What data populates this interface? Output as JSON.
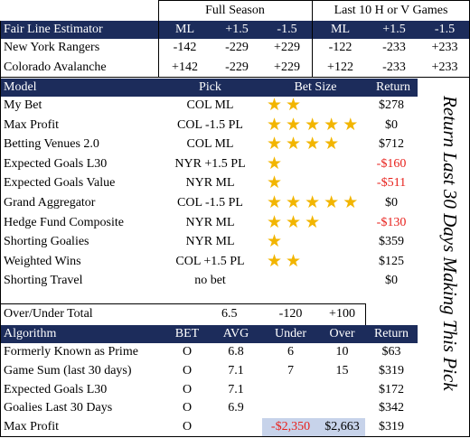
{
  "top_header": {
    "full_season": "Full Season",
    "last10": "Last 10 H or V Games"
  },
  "fair_line": {
    "title": "Fair Line Estimator",
    "cols": [
      "ML",
      "+1.5",
      "-1.5",
      "ML",
      "+1.5",
      "-1.5"
    ],
    "rows": [
      {
        "team": "New York Rangers",
        "vals": [
          "-142",
          "-229",
          "+229",
          "-122",
          "-233",
          "+233"
        ]
      },
      {
        "team": "Colorado Avalanche",
        "vals": [
          "+142",
          "-229",
          "+229",
          "+122",
          "-233",
          "+233"
        ]
      }
    ]
  },
  "model_table": {
    "headers": {
      "model": "Model",
      "pick": "Pick",
      "bet_size": "Bet Size",
      "return": "Return"
    },
    "rows": [
      {
        "model": "My Bet",
        "pick": "COL ML",
        "stars": 2,
        "return": "$278",
        "negative": false
      },
      {
        "model": "Max Profit",
        "pick": "COL -1.5 PL",
        "stars": 5,
        "return": "$0",
        "negative": false
      },
      {
        "model": "Betting Venues 2.0",
        "pick": "COL ML",
        "stars": 4,
        "return": "$712",
        "negative": false
      },
      {
        "model": "Expected Goals L30",
        "pick": "NYR +1.5 PL",
        "stars": 1,
        "return": "-$160",
        "negative": true
      },
      {
        "model": "Expected Goals Value",
        "pick": "NYR ML",
        "stars": 1,
        "return": "-$511",
        "negative": true
      },
      {
        "model": "Grand Aggregator",
        "pick": "COL -1.5 PL",
        "stars": 5,
        "return": "$0",
        "negative": false
      },
      {
        "model": "Hedge Fund Composite",
        "pick": "NYR ML",
        "stars": 3,
        "return": "-$130",
        "negative": true
      },
      {
        "model": "Shorting Goalies",
        "pick": "NYR ML",
        "stars": 1,
        "return": "$359",
        "negative": false
      },
      {
        "model": "Weighted Wins",
        "pick": "COL +1.5 PL",
        "stars": 2,
        "return": "$125",
        "negative": false
      },
      {
        "model": "Shorting Travel",
        "pick": "no bet",
        "stars": 0,
        "return": "$0",
        "negative": false
      }
    ]
  },
  "vertical_label": "Return Last 30 Days Making This Pick",
  "over_under": {
    "label": "Over/Under Total",
    "total": "6.5",
    "under_odds": "-120",
    "over_odds": "+100"
  },
  "algorithm_table": {
    "headers": {
      "algorithm": "Algorithm",
      "bet": "BET",
      "avg": "AVG",
      "under": "Under",
      "over": "Over",
      "return": "Return"
    },
    "rows": [
      {
        "name": "Formerly Known as Prime",
        "bet": "O",
        "avg": "6.8",
        "under": "6",
        "over": "10",
        "return": "$63"
      },
      {
        "name": "Game Sum (last 30 days)",
        "bet": "O",
        "avg": "7.1",
        "under": "7",
        "over": "15",
        "return": "$319"
      },
      {
        "name": "Expected Goals L30",
        "bet": "O",
        "avg": "7.1",
        "under": "",
        "over": "",
        "return": "$172"
      },
      {
        "name": "Goalies Last 30 Days",
        "bet": "O",
        "avg": "6.9",
        "under": "",
        "over": "",
        "return": "$342"
      },
      {
        "name": "Max Profit",
        "bet": "O",
        "avg": "",
        "under": "-$2,350",
        "over": "$2,663",
        "return": "$319"
      }
    ]
  },
  "colors": {
    "header_bg": "#1c2c5b",
    "star": "#f2b500",
    "negative": "#e8211c",
    "highlight_box": "#c7d3ea"
  }
}
